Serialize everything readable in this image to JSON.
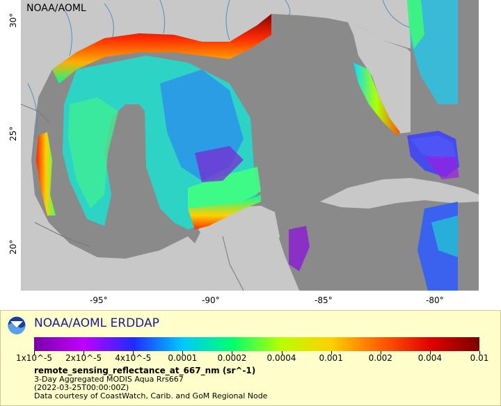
{
  "map": {
    "source_tag": "NOAA/AOML",
    "x_ticks": [
      "-95°",
      "-90°",
      "-85°",
      "-80°"
    ],
    "y_ticks": [
      "30°",
      "25°",
      "20°"
    ],
    "colors": {
      "land": "#c8c8c8",
      "ocean_nodata": "#8a8a8a",
      "rivers": "#4f8fb8",
      "borders": "#777777"
    }
  },
  "legend": {
    "brand": "NOAA/AOML ERDDAP",
    "variable": "remote_sensing_reflectance_at_667_nm (sr^-1)",
    "product": "3-Day Aggregated MODIS Aqua Rrs667",
    "time": "(2022-03-25T00:00:00Z)",
    "credit": "Data courtesy of CoastWatch, Carib. and GoM Regional Node",
    "scale_labels": [
      "1x10^-5",
      "2x10^-5",
      "4x10^-5",
      "0.0001",
      "0.0002",
      "0.0004",
      "0.001",
      "0.002",
      "0.004",
      "0.01"
    ],
    "scale_colors": [
      "#7a00a8",
      "#c000ff",
      "#1f2bff",
      "#00c8ff",
      "#00ff70",
      "#b8ff00",
      "#ffd000",
      "#ff6000",
      "#e00000",
      "#7a0000"
    ]
  }
}
